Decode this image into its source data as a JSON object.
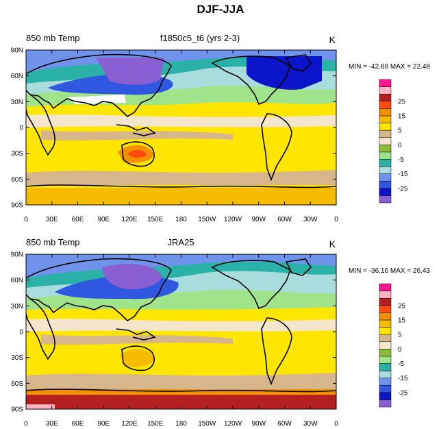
{
  "main_title": "DJF-JJA",
  "colors": {
    "palette": [
      "#8a5fd3",
      "#0a14c8",
      "#2f57e0",
      "#6f93ea",
      "#a9dcdc",
      "#2bb2a8",
      "#9fe38a",
      "#8fbb3b",
      "#f3e6cc",
      "#d7b68b",
      "#ffe600",
      "#f6bd00",
      "#f29000",
      "#ff4a12",
      "#b22020",
      "#ffb3c4",
      "#ff1493"
    ],
    "land": "#000000"
  },
  "colorbar_labels": [
    "-25",
    "-15",
    "-5",
    "0",
    "5",
    "15",
    "25"
  ],
  "lat_labels": [
    "90N",
    "60N",
    "30N",
    "0",
    "30S",
    "60S",
    "90S"
  ],
  "lon_labels": [
    "0",
    "30E",
    "60E",
    "90E",
    "120E",
    "150E",
    "180",
    "150W",
    "120W",
    "90W",
    "60W",
    "30W",
    "0"
  ],
  "panels": [
    {
      "left_label": "850 mb Temp",
      "center_label": "f1850c5_t6 (yrs 2-3)",
      "units": "K",
      "stats": "MIN = -42.68 MAX =  22.48"
    },
    {
      "left_label": "850 mb Temp",
      "center_label": "JRA25",
      "units": "K",
      "stats": "MIN = -36.16 MAX =  26.43"
    }
  ]
}
